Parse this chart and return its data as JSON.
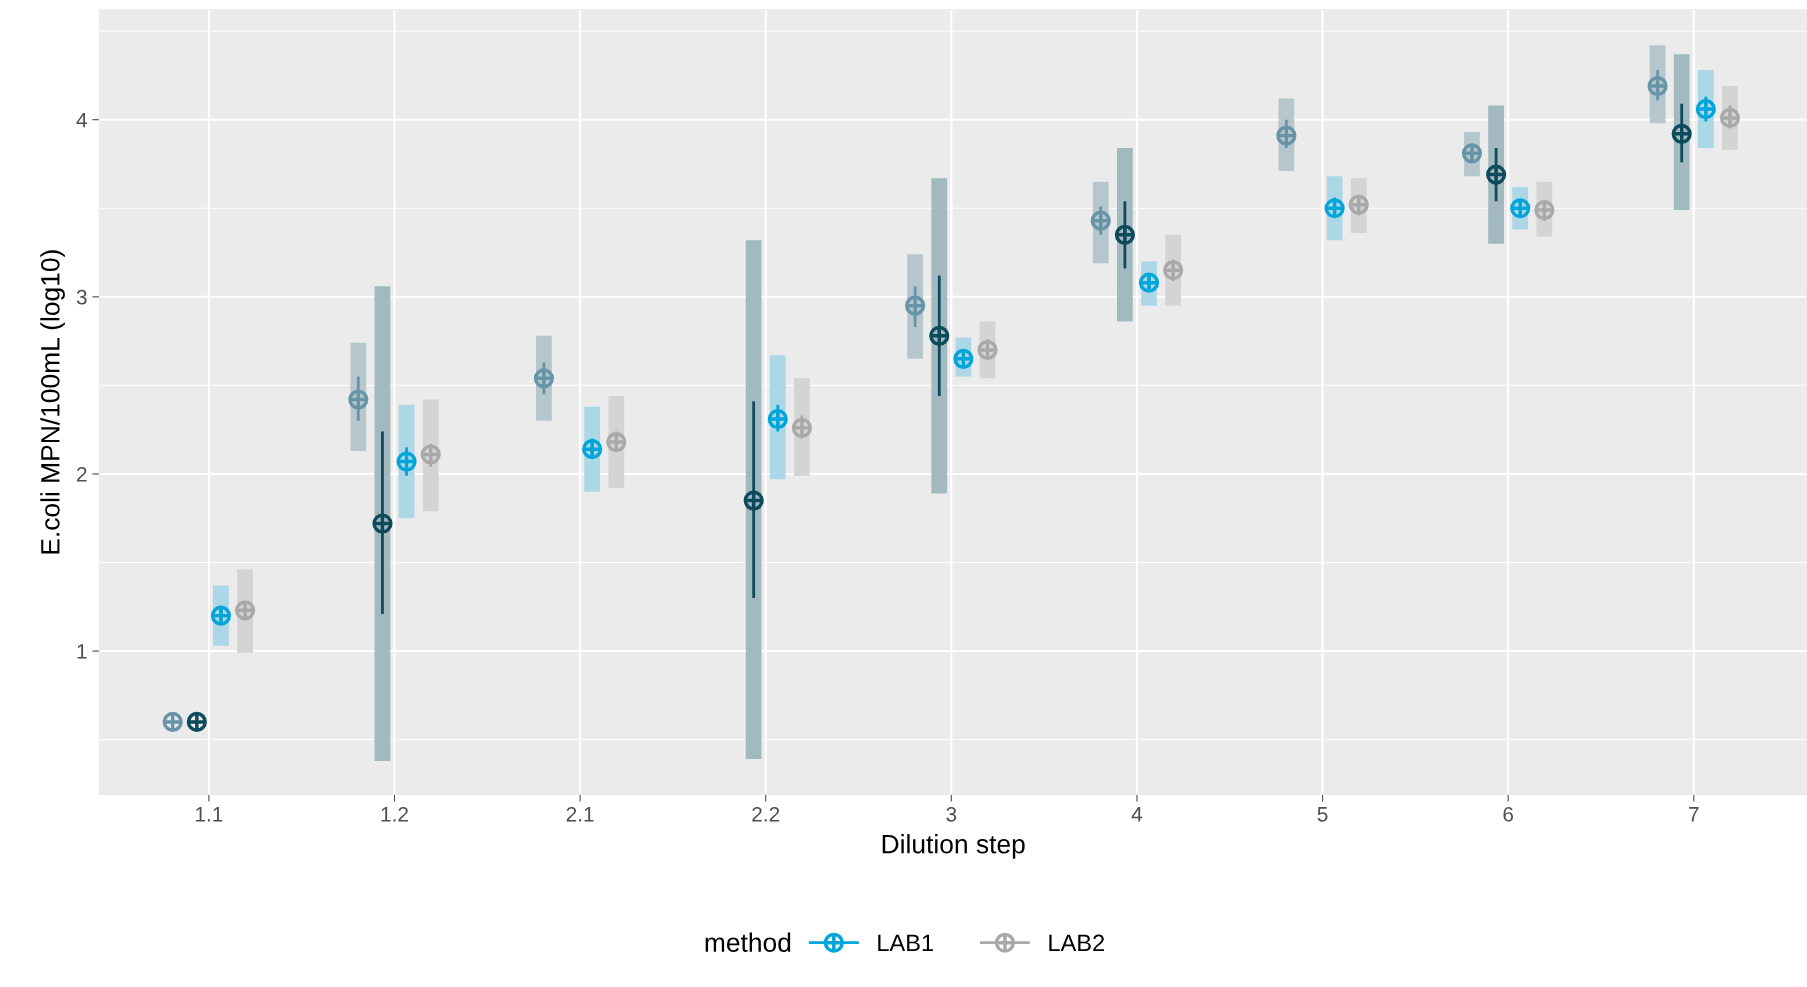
{
  "chart_data": {
    "type": "scatter",
    "xlabel": "Dilution step",
    "ylabel": "E.coli MPN/100mL (log10)",
    "legend_title": "method",
    "legend": "bottom",
    "grid": true,
    "marker": "cross",
    "categories": [
      "1.1",
      "1.2",
      "2.1",
      "2.2",
      "3",
      "4",
      "5",
      "6",
      "7"
    ],
    "ylim": [
      0.19,
      4.62
    ],
    "yticks": [
      1,
      2,
      3,
      4
    ],
    "series": [
      {
        "type": "bar",
        "color": "#b5c6cd",
        "base": [
          null,
          2.13,
          2.3,
          null,
          2.65,
          3.19,
          3.71,
          3.68,
          3.98
        ],
        "values": [
          null,
          0.61,
          0.48,
          null,
          0.59,
          0.46,
          0.41,
          0.25,
          0.44
        ]
      },
      {
        "type": "bar",
        "color": "#a2b9c0",
        "base": [
          null,
          0.38,
          null,
          0.39,
          1.89,
          2.86,
          null,
          3.3,
          3.49
        ],
        "values": [
          null,
          2.68,
          null,
          2.93,
          1.78,
          0.98,
          null,
          0.78,
          0.88
        ]
      },
      {
        "type": "bar",
        "color": "#abd7e6",
        "base": [
          1.03,
          1.75,
          1.9,
          1.97,
          2.55,
          2.95,
          3.32,
          3.38,
          3.84
        ],
        "values": [
          0.34,
          0.64,
          0.48,
          0.7,
          0.22,
          0.25,
          0.36,
          0.24,
          0.44
        ]
      },
      {
        "type": "bar",
        "color": "#d4d4d4",
        "base": [
          0.99,
          1.79,
          1.92,
          1.99,
          2.54,
          2.95,
          3.36,
          3.34,
          3.83
        ],
        "values": [
          0.47,
          0.63,
          0.52,
          0.55,
          0.32,
          0.4,
          0.31,
          0.31,
          0.36
        ]
      },
      {
        "color": "#6894a8",
        "values": [
          0.6,
          2.42,
          2.54,
          null,
          2.95,
          3.43,
          3.91,
          3.81,
          4.19
        ],
        "errors": [
          null,
          [
            2.3,
            2.55
          ],
          [
            2.45,
            2.63
          ],
          null,
          [
            2.83,
            3.06
          ],
          [
            3.35,
            3.51
          ],
          [
            3.84,
            4.0
          ],
          [
            3.76,
            3.86
          ],
          [
            4.11,
            4.28
          ]
        ]
      },
      {
        "color": "#0d4a5c",
        "values": [
          0.6,
          1.72,
          null,
          1.85,
          2.78,
          3.35,
          null,
          3.69,
          3.92
        ],
        "errors": [
          null,
          [
            1.21,
            2.24
          ],
          null,
          [
            1.3,
            2.41
          ],
          [
            2.44,
            3.12
          ],
          [
            3.16,
            3.54
          ],
          null,
          [
            3.54,
            3.84
          ],
          [
            3.76,
            4.09
          ]
        ]
      },
      {
        "name": "LAB1",
        "color": "#00a5da",
        "values": [
          1.2,
          2.07,
          2.14,
          2.31,
          2.65,
          3.08,
          3.5,
          3.5,
          4.06
        ],
        "errors": [
          [
            1.15,
            1.25
          ],
          [
            1.99,
            2.15
          ],
          [
            2.09,
            2.2
          ],
          [
            2.24,
            2.39
          ],
          [
            2.61,
            2.7
          ],
          [
            3.03,
            3.13
          ],
          [
            3.45,
            3.56
          ],
          [
            3.45,
            3.54
          ],
          [
            3.99,
            4.13
          ]
        ]
      },
      {
        "name": "LAB2",
        "color": "#a9a9a9",
        "values": [
          1.23,
          2.11,
          2.18,
          2.26,
          2.7,
          3.15,
          3.52,
          3.49,
          4.01
        ],
        "errors": [
          [
            1.18,
            1.28
          ],
          [
            2.04,
            2.17
          ],
          [
            2.13,
            2.24
          ],
          [
            2.2,
            2.33
          ],
          [
            2.65,
            2.76
          ],
          [
            3.09,
            3.21
          ],
          [
            3.46,
            3.56
          ],
          [
            3.43,
            3.54
          ],
          [
            3.95,
            4.08
          ]
        ]
      }
    ]
  }
}
